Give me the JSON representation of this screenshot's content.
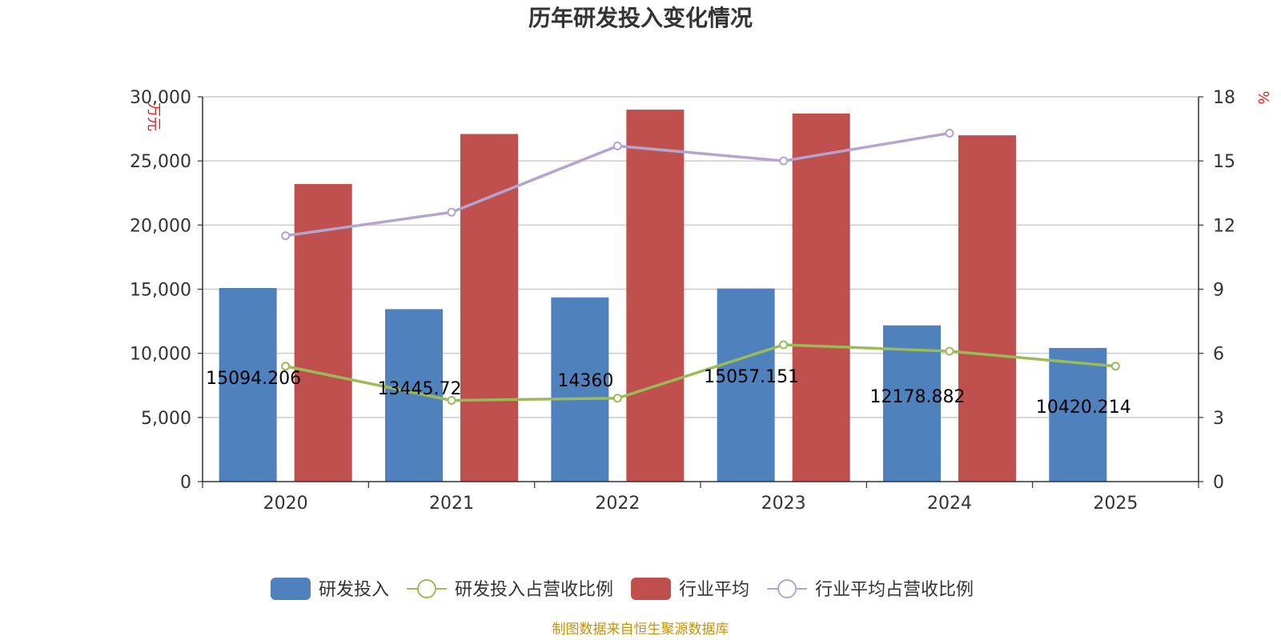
{
  "chart_data": {
    "type": "bar",
    "title": "历年研发投入变化情况",
    "categories": [
      "2020",
      "2021",
      "2022",
      "2023",
      "2024",
      "2025"
    ],
    "y_left": {
      "unit": "万元",
      "ylim": [
        0,
        30000
      ],
      "ticks": [
        "0",
        "5,000",
        "10,000",
        "15,000",
        "20,000",
        "25,000",
        "30,000"
      ]
    },
    "y_right": {
      "unit": "%",
      "ylim": [
        0,
        18
      ],
      "ticks": [
        "0",
        "3",
        "6",
        "9",
        "12",
        "15",
        "18"
      ]
    },
    "series": [
      {
        "name": "研发投入",
        "kind": "bar",
        "axis": "left",
        "color": "#4f81bd",
        "values": [
          15094.206,
          13445.72,
          14360,
          15057.151,
          12178.882,
          10420.214
        ],
        "labels": [
          "15094.206",
          "13445.72",
          "14360",
          "15057.151",
          "12178.882",
          "10420.214"
        ]
      },
      {
        "name": "研发投入占营收比例",
        "kind": "line",
        "axis": "right",
        "color": "#9bbb59",
        "values": [
          5.4,
          3.8,
          3.9,
          6.4,
          6.1,
          5.4
        ]
      },
      {
        "name": "行业平均",
        "kind": "bar",
        "axis": "left",
        "color": "#c0504d",
        "values": [
          23200,
          27100,
          29000,
          28700,
          27000,
          null
        ]
      },
      {
        "name": "行业平均占营收比例",
        "kind": "line",
        "axis": "right",
        "color": "#b3a5cf",
        "values": [
          11.5,
          12.6,
          15.7,
          15.0,
          16.3,
          null
        ]
      }
    ],
    "grid": true,
    "legend": "bottom-center"
  },
  "footer": {
    "source": "制图数据来自恒生聚源数据库"
  }
}
